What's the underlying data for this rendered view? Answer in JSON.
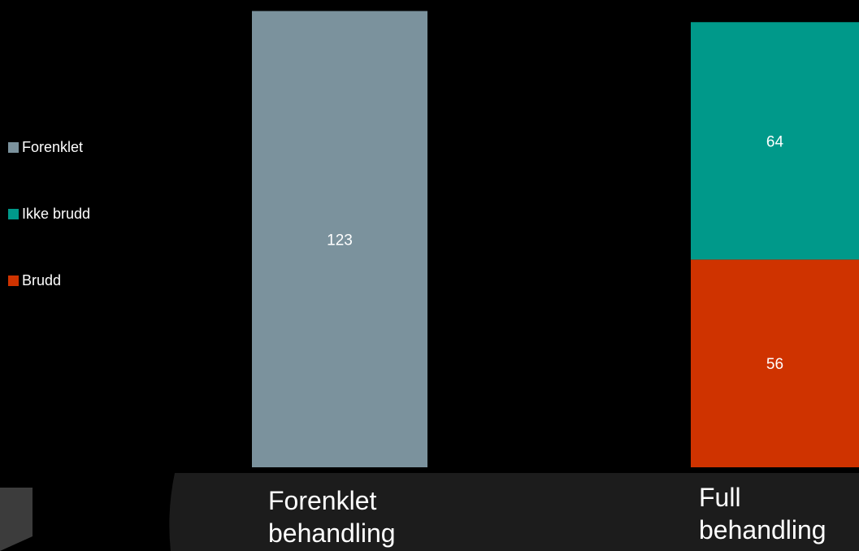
{
  "colors": {
    "background": "#000000",
    "forenklet": "#7b929d",
    "ikke_brudd": "#00998a",
    "brudd": "#cf3300",
    "decor": "#1c1c1c"
  },
  "legend": [
    {
      "label": "Forenklet",
      "color": "#7b929d"
    },
    {
      "label": "Ikke brudd",
      "color": "#00998a"
    },
    {
      "label": "Brudd",
      "color": "#cf3300"
    }
  ],
  "categories": [
    {
      "label": "Forenklet\nbehandling"
    },
    {
      "label": "Full\nbehandling"
    }
  ],
  "chart_data": {
    "type": "bar",
    "stacked": true,
    "categories": [
      "Forenklet behandling",
      "Full behandling"
    ],
    "series": [
      {
        "name": "Brudd",
        "values": [
          0,
          56
        ],
        "color": "#cf3300"
      },
      {
        "name": "Ikke brudd",
        "values": [
          0,
          64
        ],
        "color": "#00998a"
      },
      {
        "name": "Forenklet",
        "values": [
          123,
          0
        ],
        "color": "#7b929d"
      }
    ],
    "data_labels": true,
    "legend_position": "left",
    "ylim": [
      0,
      124
    ],
    "grid": false
  }
}
